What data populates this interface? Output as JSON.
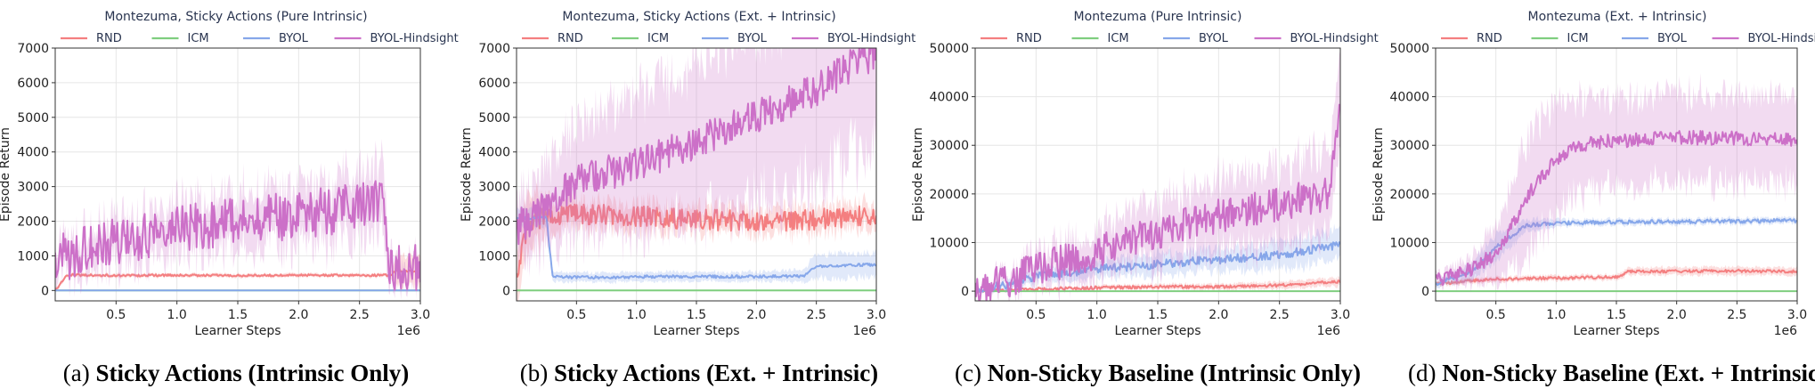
{
  "colors": {
    "RND": "#f47f80",
    "ICM": "#7fce7f",
    "BYOL": "#86a7ea",
    "BYOL-Hindsight": "#cc70c8"
  },
  "legend_names": [
    "RND",
    "ICM",
    "BYOL",
    "BYOL-Hindsight"
  ],
  "chart_data": [
    {
      "type": "line",
      "title": "Montezuma, Sticky Actions (Pure Intrinsic)",
      "caption_prefix": "(a)",
      "caption_bold": "Sticky Actions (Intrinsic Only)",
      "xlabel": "Learner Steps",
      "ylabel": "Episode Return",
      "x_multiplier": "1e6",
      "xlim": [
        0,
        3.0
      ],
      "ylim": [
        -300,
        7000
      ],
      "xticks": [
        0.5,
        1.0,
        1.5,
        2.0,
        2.5,
        3.0
      ],
      "xtick_labels": [
        "0.5",
        "1.0",
        "1.5",
        "2.0",
        "2.5",
        "3.0"
      ],
      "yticks": [
        0,
        1000,
        2000,
        3000,
        4000,
        5000,
        6000,
        7000
      ],
      "ytick_labels": [
        "0",
        "1000",
        "2000",
        "3000",
        "4000",
        "5000",
        "6000",
        "7000"
      ],
      "grid": true,
      "legend_position": "top",
      "series": [
        {
          "name": "RND",
          "points": [
            [
              0.0,
              0
            ],
            [
              0.1,
              450
            ],
            [
              0.5,
              430
            ],
            [
              1.0,
              440
            ],
            [
              1.5,
              430
            ],
            [
              2.0,
              440
            ],
            [
              2.5,
              440
            ],
            [
              2.75,
              440
            ],
            [
              2.8,
              560
            ],
            [
              3.0,
              560
            ]
          ],
          "band": [
            60,
            60,
            60,
            60,
            60,
            60,
            60,
            60,
            450,
            450
          ],
          "noise": 30
        },
        {
          "name": "ICM",
          "points": [
            [
              0.0,
              0
            ],
            [
              3.0,
              0
            ]
          ],
          "band": [
            20,
            20
          ],
          "noise": 0
        },
        {
          "name": "BYOL",
          "points": [
            [
              0.0,
              0
            ],
            [
              3.0,
              0
            ]
          ],
          "band": [
            15,
            15
          ],
          "noise": 0
        },
        {
          "name": "BYOL-Hindsight",
          "points": [
            [
              0.0,
              900
            ],
            [
              0.3,
              1200
            ],
            [
              0.6,
              1500
            ],
            [
              1.0,
              1800
            ],
            [
              1.5,
              2000
            ],
            [
              2.0,
              2200
            ],
            [
              2.5,
              2400
            ],
            [
              2.7,
              2600
            ],
            [
              2.75,
              700
            ],
            [
              3.0,
              600
            ]
          ],
          "band": [
            500,
            600,
            700,
            800,
            900,
            900,
            1000,
            1100,
            300,
            300
          ],
          "noise": 700
        }
      ]
    },
    {
      "type": "line",
      "title": "Montezuma, Sticky Actions (Ext. + Intrinsic)",
      "caption_prefix": "(b)",
      "caption_bold": "Sticky Actions (Ext. + Intrinsic)",
      "xlabel": "Learner Steps",
      "ylabel": "Episode Return",
      "x_multiplier": "1e6",
      "xlim": [
        0,
        3.0
      ],
      "ylim": [
        -300,
        7000
      ],
      "xticks": [
        0.5,
        1.0,
        1.5,
        2.0,
        2.5,
        3.0
      ],
      "xtick_labels": [
        "0.5",
        "1.0",
        "1.5",
        "2.0",
        "2.5",
        "3.0"
      ],
      "yticks": [
        0,
        1000,
        2000,
        3000,
        4000,
        5000,
        6000,
        7000
      ],
      "ytick_labels": [
        "0",
        "1000",
        "2000",
        "3000",
        "4000",
        "5000",
        "6000",
        "7000"
      ],
      "grid": true,
      "legend_position": "top",
      "series": [
        {
          "name": "RND",
          "points": [
            [
              0.0,
              400
            ],
            [
              0.1,
              2000
            ],
            [
              0.3,
              2200
            ],
            [
              0.5,
              2200
            ],
            [
              1.0,
              2150
            ],
            [
              1.5,
              2050
            ],
            [
              2.0,
              2000
            ],
            [
              2.5,
              2050
            ],
            [
              3.0,
              2200
            ]
          ],
          "band": [
            800,
            900,
            500,
            400,
            400,
            400,
            400,
            400,
            400
          ],
          "noise": 300
        },
        {
          "name": "ICM",
          "points": [
            [
              0.0,
              0
            ],
            [
              3.0,
              0
            ]
          ],
          "band": [
            20,
            20
          ],
          "noise": 0
        },
        {
          "name": "BYOL",
          "points": [
            [
              0.0,
              2100
            ],
            [
              0.25,
              2100
            ],
            [
              0.3,
              400
            ],
            [
              0.5,
              380
            ],
            [
              0.9,
              380
            ],
            [
              1.0,
              400
            ],
            [
              1.5,
              400
            ],
            [
              2.0,
              400
            ],
            [
              2.4,
              420
            ],
            [
              2.5,
              700
            ],
            [
              3.0,
              750
            ]
          ],
          "band": [
            300,
            300,
            150,
            150,
            150,
            150,
            150,
            150,
            200,
            400,
            400
          ],
          "noise": 40
        },
        {
          "name": "BYOL-Hindsight",
          "points": [
            [
              0.0,
              1800
            ],
            [
              0.3,
              2500
            ],
            [
              0.5,
              3200
            ],
            [
              1.0,
              3600
            ],
            [
              1.5,
              4300
            ],
            [
              2.0,
              5000
            ],
            [
              2.5,
              5800
            ],
            [
              2.8,
              6500
            ],
            [
              3.0,
              6900
            ]
          ],
          "band": [
            1000,
            1400,
            1800,
            2200,
            2500,
            2800,
            3000,
            3000,
            3000
          ],
          "noise": 500
        }
      ]
    },
    {
      "type": "line",
      "title": "Montezuma (Pure Intrinsic)",
      "caption_prefix": "(c)",
      "caption_bold": "Non-Sticky Baseline (Intrinsic Only)",
      "xlabel": "Learner Steps",
      "ylabel": "Episode Return",
      "x_multiplier": "1e6",
      "xlim": [
        0,
        3.0
      ],
      "ylim": [
        -2000,
        50000
      ],
      "xticks": [
        0.5,
        1.0,
        1.5,
        2.0,
        2.5,
        3.0
      ],
      "xtick_labels": [
        "0.5",
        "1.0",
        "1.5",
        "2.0",
        "2.5",
        "3.0"
      ],
      "yticks": [
        0,
        10000,
        20000,
        30000,
        40000,
        50000
      ],
      "ytick_labels": [
        "0",
        "10000",
        "20000",
        "30000",
        "40000",
        "50000"
      ],
      "grid": true,
      "legend_position": "top",
      "series": [
        {
          "name": "RND",
          "points": [
            [
              0.0,
              0
            ],
            [
              0.5,
              400
            ],
            [
              1.0,
              700
            ],
            [
              1.5,
              900
            ],
            [
              2.0,
              900
            ],
            [
              2.5,
              1200
            ],
            [
              3.0,
              2000
            ]
          ],
          "band": [
            100,
            300,
            500,
            600,
            700,
            800,
            1000
          ],
          "noise": 300
        },
        {
          "name": "ICM",
          "points": [
            [
              0.0,
              0
            ],
            [
              3.0,
              0
            ]
          ],
          "band": [
            50,
            50
          ],
          "noise": 0
        },
        {
          "name": "BYOL",
          "points": [
            [
              0.0,
              200
            ],
            [
              0.3,
              1500
            ],
            [
              0.5,
              3000
            ],
            [
              1.0,
              4500
            ],
            [
              1.5,
              5500
            ],
            [
              2.0,
              6500
            ],
            [
              2.5,
              7500
            ],
            [
              3.0,
              9500
            ]
          ],
          "band": [
            300,
            1000,
            1500,
            2000,
            2500,
            2500,
            3000,
            3500
          ],
          "noise": 900
        },
        {
          "name": "BYOL-Hindsight",
          "points": [
            [
              0.0,
              200
            ],
            [
              0.3,
              2500
            ],
            [
              0.5,
              4500
            ],
            [
              1.0,
              8000
            ],
            [
              1.5,
              12000
            ],
            [
              2.0,
              15500
            ],
            [
              2.5,
              18000
            ],
            [
              2.9,
              20000
            ],
            [
              3.0,
              37000
            ]
          ],
          "band": [
            500,
            2000,
            3500,
            5000,
            7000,
            8000,
            9000,
            10000,
            10000
          ],
          "noise": 3500
        }
      ]
    },
    {
      "type": "line",
      "title": "Montezuma (Ext. + Intrinsic)",
      "caption_prefix": "(d)",
      "caption_bold": "Non-Sticky Baseline (Ext. + Intrinsic)",
      "xlabel": "Learner Steps",
      "ylabel": "Episode Return",
      "x_multiplier": "1e6",
      "xlim": [
        0,
        3.0
      ],
      "ylim": [
        -2000,
        50000
      ],
      "xticks": [
        0.5,
        1.0,
        1.5,
        2.0,
        2.5,
        3.0
      ],
      "xtick_labels": [
        "0.5",
        "1.0",
        "1.5",
        "2.0",
        "2.5",
        "3.0"
      ],
      "yticks": [
        0,
        10000,
        20000,
        30000,
        40000,
        50000
      ],
      "ytick_labels": [
        "0",
        "10000",
        "20000",
        "30000",
        "40000",
        "50000"
      ],
      "grid": true,
      "legend_position": "top",
      "series": [
        {
          "name": "RND",
          "points": [
            [
              0.0,
              1500
            ],
            [
              0.3,
              2200
            ],
            [
              0.5,
              2500
            ],
            [
              1.0,
              2700
            ],
            [
              1.5,
              2900
            ],
            [
              1.6,
              4000
            ],
            [
              2.0,
              4100
            ],
            [
              2.5,
              4200
            ],
            [
              3.0,
              4000
            ]
          ],
          "band": [
            500,
            600,
            600,
            600,
            600,
            800,
            900,
            900,
            900
          ],
          "noise": 300
        },
        {
          "name": "ICM",
          "points": [
            [
              0.0,
              0
            ],
            [
              3.0,
              0
            ]
          ],
          "band": [
            50,
            50
          ],
          "noise": 0
        },
        {
          "name": "BYOL",
          "points": [
            [
              0.0,
              1500
            ],
            [
              0.3,
              4000
            ],
            [
              0.5,
              9000
            ],
            [
              0.75,
              13500
            ],
            [
              1.0,
              14000
            ],
            [
              1.5,
              14200
            ],
            [
              2.0,
              14300
            ],
            [
              2.5,
              14400
            ],
            [
              3.0,
              14500
            ]
          ],
          "band": [
            800,
            2000,
            3000,
            1500,
            800,
            700,
            700,
            700,
            700
          ],
          "noise": 400
        },
        {
          "name": "BYOL-Hindsight",
          "points": [
            [
              0.0,
              2000
            ],
            [
              0.3,
              4500
            ],
            [
              0.5,
              8000
            ],
            [
              0.7,
              16000
            ],
            [
              0.8,
              21000
            ],
            [
              1.0,
              27000
            ],
            [
              1.2,
              30000
            ],
            [
              1.5,
              31000
            ],
            [
              2.0,
              31500
            ],
            [
              2.5,
              31500
            ],
            [
              3.0,
              31000
            ]
          ],
          "band": [
            1000,
            3000,
            6000,
            12000,
            14000,
            12000,
            11000,
            10000,
            10000,
            10000,
            10000
          ],
          "noise": 1500
        }
      ]
    }
  ]
}
